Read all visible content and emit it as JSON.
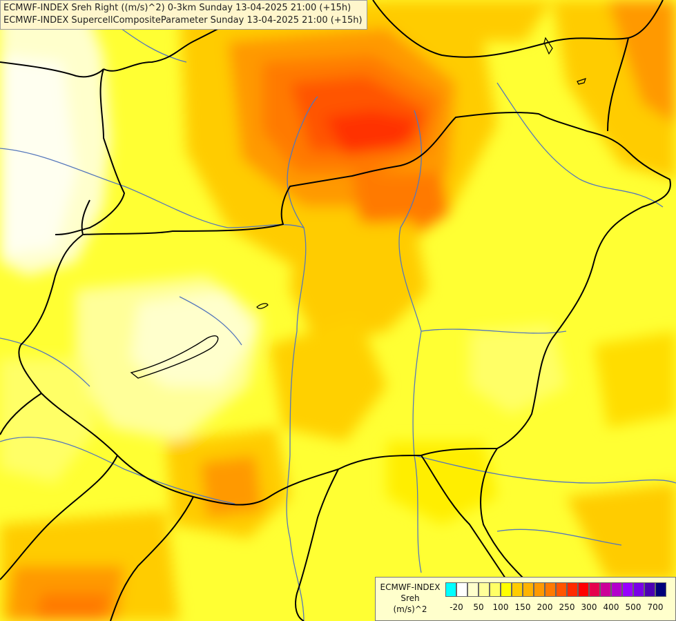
{
  "header": {
    "line1": "ECMWF-INDEX Sreh Right ((m/s)^2) 0-3km Sunday 13-04-2025 21:00 (+15h)",
    "line2": "ECMWF-INDEX SupercellCompositeParameter Sunday 13-04-2025 21:00 (+15h)"
  },
  "legend": {
    "title": "ECMWF-INDEX",
    "variable": "Sreh",
    "unit": "(m/s)^2",
    "colors": [
      "#00ffff",
      "#ffffff",
      "#ffffcc",
      "#ffff99",
      "#ffff66",
      "#ffff00",
      "#ffcc00",
      "#ffb300",
      "#ff9900",
      "#ff7a00",
      "#ff5500",
      "#ff2a00",
      "#ff0000",
      "#e6004d",
      "#cc0099",
      "#b300cc",
      "#9900ff",
      "#7a00e6",
      "#4d00b3",
      "#00007a"
    ],
    "ticks": [
      "-20",
      "50",
      "100",
      "150",
      "200",
      "250",
      "300",
      "400",
      "500",
      "700"
    ]
  },
  "colors": {
    "low": "#ffffcc",
    "mid": "#ffff00",
    "high": "#ff9900",
    "peak": "#ff3300",
    "border": "#000000",
    "river": "#5577bb"
  }
}
